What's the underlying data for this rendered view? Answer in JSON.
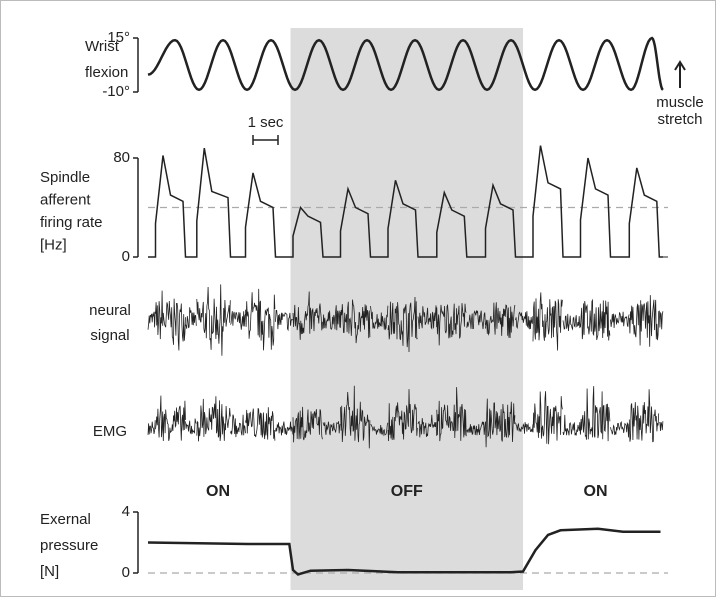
{
  "chart_data": {
    "type": "multi-trace",
    "xlim": [
      0,
      20.6
    ],
    "off_period": [
      5.7,
      15.0
    ],
    "conditions": [
      {
        "label": "ON",
        "x": 2.8
      },
      {
        "label": "OFF",
        "x": 10.35
      },
      {
        "label": "ON",
        "x": 17.9
      }
    ],
    "scalebar": {
      "label": "1 sec",
      "length": 1,
      "x": 4.2
    },
    "wrist": {
      "label": [
        "Wrist",
        "flexion"
      ],
      "annotation": [
        "muscle",
        "stretch"
      ],
      "ylim": [
        -10,
        15
      ],
      "yticks": [
        {
          "value": 15,
          "label": "15°"
        },
        {
          "value": -10,
          "label": "-10°"
        }
      ],
      "x": [
        0,
        1.08,
        2.04,
        3.0,
        3.96,
        4.92,
        5.88,
        6.84,
        7.8,
        8.76,
        9.72,
        10.68,
        11.64,
        12.6,
        13.56,
        14.52,
        15.48,
        16.44,
        17.4,
        18.36,
        19.32,
        20.16,
        20.6
      ],
      "values": [
        -2,
        14,
        -9,
        14,
        -9,
        14,
        -9,
        14,
        -9,
        14,
        -9,
        14,
        -9,
        14,
        -9,
        14,
        -9,
        14,
        -9,
        14,
        -9,
        15,
        -9
      ]
    },
    "spindle": {
      "label": [
        "Spindle",
        "afferent",
        "firing rate",
        "[Hz]"
      ],
      "ylim": [
        0,
        80
      ],
      "yticks": [
        0,
        80
      ],
      "dashed_line": 40,
      "x": [
        0,
        0.3,
        0.3,
        0.6,
        0.9,
        1.4,
        1.5,
        1.95,
        1.95,
        2.25,
        2.55,
        3.2,
        3.3,
        3.9,
        3.9,
        4.2,
        4.5,
        5.0,
        5.1,
        5.8,
        5.8,
        6.1,
        6.4,
        6.9,
        7.0,
        7.7,
        7.7,
        8.0,
        8.3,
        8.8,
        8.9,
        9.6,
        9.6,
        9.9,
        10.2,
        10.7,
        10.8,
        11.55,
        11.55,
        11.85,
        12.15,
        12.65,
        12.75,
        13.5,
        13.5,
        13.8,
        14.1,
        14.6,
        14.7,
        15.4,
        15.4,
        15.7,
        16.0,
        16.5,
        16.6,
        17.3,
        17.3,
        17.6,
        17.9,
        18.4,
        18.5,
        19.25,
        19.25,
        19.55,
        19.85,
        20.35,
        20.45,
        20.6
      ],
      "values": [
        0,
        0,
        27,
        82,
        50,
        45,
        0,
        0,
        29,
        88,
        53,
        48,
        0,
        0,
        24,
        68,
        45,
        40,
        0,
        0,
        17,
        40,
        33,
        28,
        0,
        0,
        21,
        55,
        40,
        35,
        0,
        0,
        23,
        62,
        43,
        38,
        0,
        0,
        20,
        52,
        38,
        33,
        0,
        0,
        23,
        58,
        43,
        38,
        0,
        0,
        33,
        90,
        60,
        55,
        0,
        0,
        30,
        80,
        55,
        50,
        0,
        0,
        27,
        72,
        50,
        45,
        0,
        0
      ]
    },
    "neural": {
      "label": [
        "neural",
        "signal"
      ],
      "baseline": 0.45,
      "bursts": [
        {
          "start": 0.3,
          "end": 1.5,
          "amplitude": 1.0
        },
        {
          "start": 1.95,
          "end": 3.3,
          "amplitude": 1.0
        },
        {
          "start": 3.9,
          "end": 5.1,
          "amplitude": 0.95
        },
        {
          "start": 5.8,
          "end": 7.0,
          "amplitude": 0.8
        },
        {
          "start": 7.7,
          "end": 8.9,
          "amplitude": 0.85
        },
        {
          "start": 9.6,
          "end": 10.8,
          "amplitude": 0.9
        },
        {
          "start": 11.55,
          "end": 12.75,
          "amplitude": 0.85
        },
        {
          "start": 13.5,
          "end": 14.7,
          "amplitude": 0.85
        },
        {
          "start": 15.4,
          "end": 16.6,
          "amplitude": 1.0
        },
        {
          "start": 17.3,
          "end": 18.5,
          "amplitude": 0.95
        },
        {
          "start": 19.25,
          "end": 20.45,
          "amplitude": 0.95
        }
      ]
    },
    "emg": {
      "label": [
        "EMG"
      ],
      "baseline": 0.3,
      "bursts": [
        {
          "start": 0.3,
          "end": 1.5,
          "amplitude": 0.75
        },
        {
          "start": 1.95,
          "end": 3.3,
          "amplitude": 0.8
        },
        {
          "start": 3.9,
          "end": 5.1,
          "amplitude": 0.7
        },
        {
          "start": 5.8,
          "end": 7.0,
          "amplitude": 0.7
        },
        {
          "start": 7.7,
          "end": 8.9,
          "amplitude": 0.85
        },
        {
          "start": 9.6,
          "end": 10.8,
          "amplitude": 0.8
        },
        {
          "start": 11.55,
          "end": 12.75,
          "amplitude": 0.8
        },
        {
          "start": 13.5,
          "end": 14.7,
          "amplitude": 0.85
        },
        {
          "start": 15.4,
          "end": 16.6,
          "amplitude": 0.8
        },
        {
          "start": 17.3,
          "end": 18.5,
          "amplitude": 0.8
        },
        {
          "start": 19.25,
          "end": 20.45,
          "amplitude": 0.85
        }
      ]
    },
    "pressure": {
      "label": [
        "Exernal",
        "pressure",
        "[N]"
      ],
      "ylim": [
        0,
        4
      ],
      "yticks": [
        0,
        4
      ],
      "x": [
        0,
        2,
        4,
        5.5,
        5.65,
        5.8,
        6.0,
        6.5,
        8,
        10,
        14.5,
        15,
        15.5,
        16,
        16.5,
        18,
        19,
        20.5
      ],
      "values": [
        2,
        1.95,
        1.9,
        1.9,
        1.9,
        0.2,
        -0.1,
        0.15,
        0.2,
        0.05,
        0.05,
        0.1,
        1.5,
        2.5,
        2.8,
        2.9,
        2.7,
        2.7
      ]
    }
  }
}
